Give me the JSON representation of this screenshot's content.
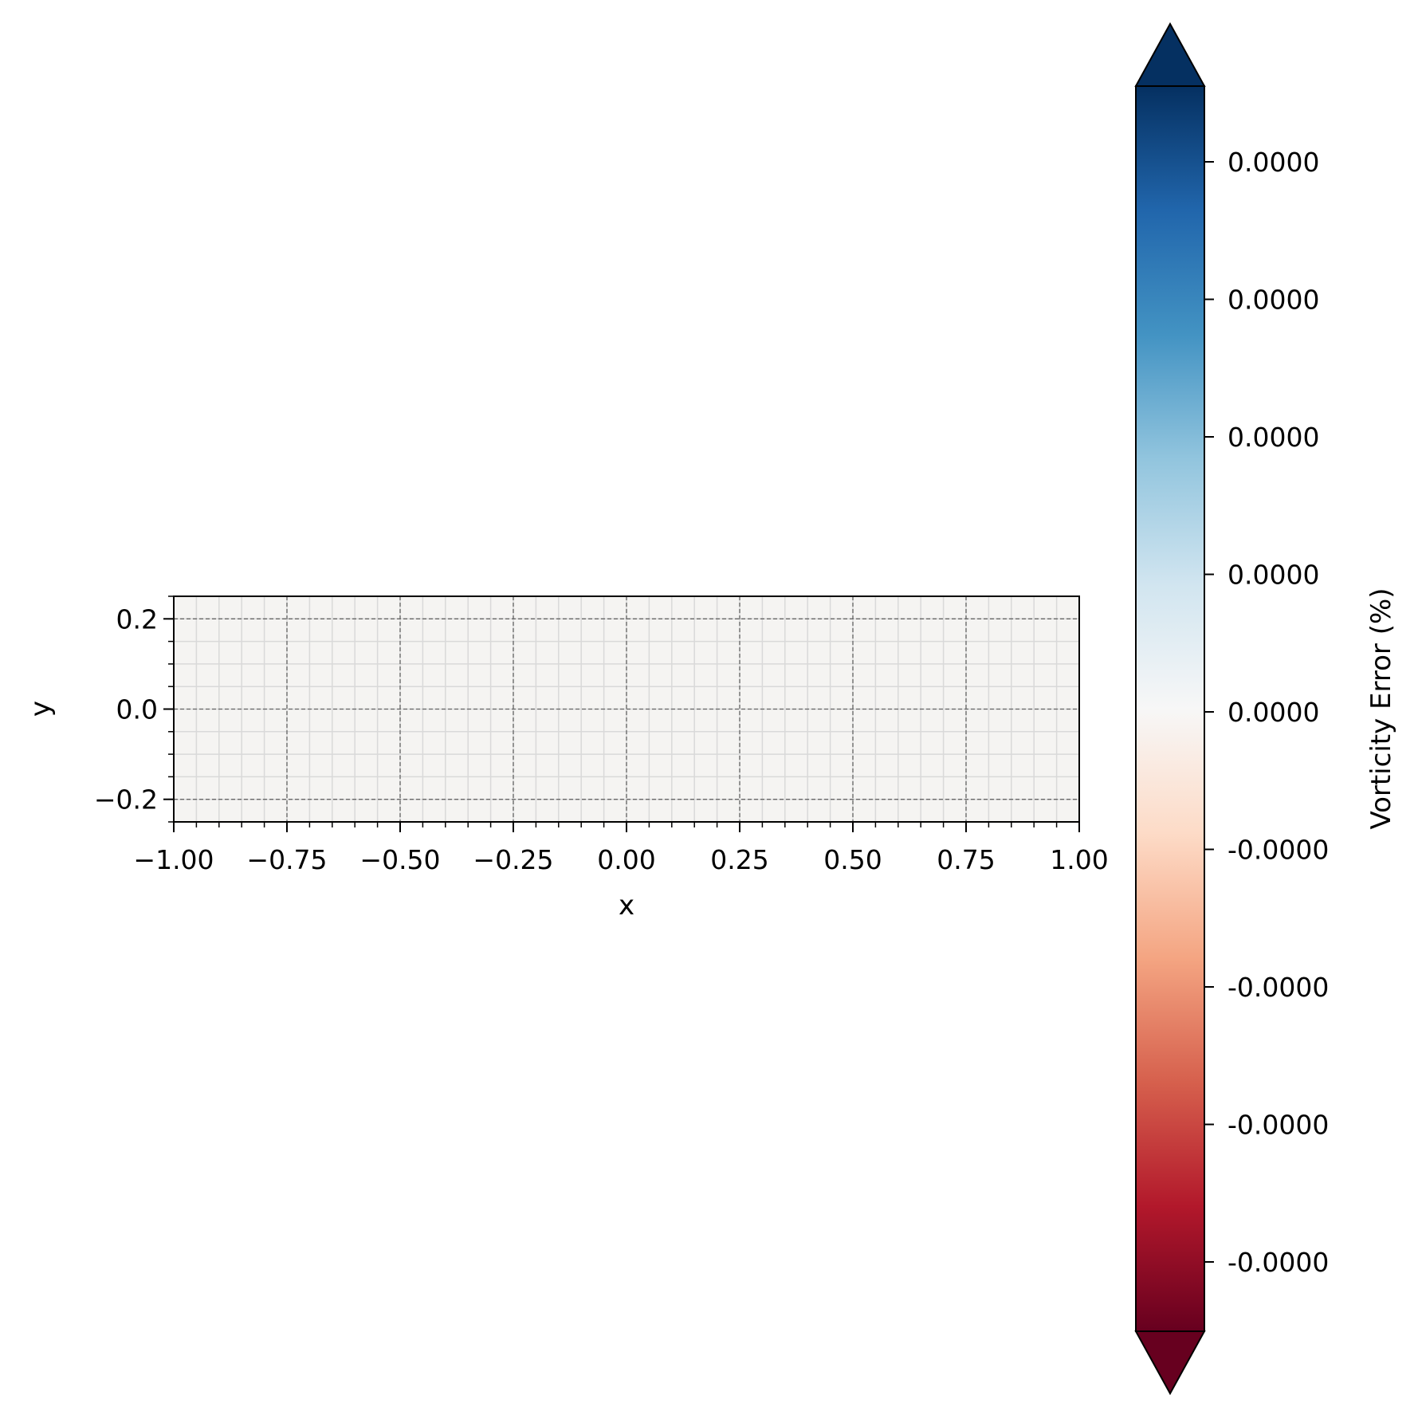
{
  "chart_data": {
    "type": "heatmap",
    "xlabel": "x",
    "ylabel": "y",
    "xlim": [
      -1.0,
      1.0
    ],
    "ylim": [
      -0.25,
      0.25
    ],
    "x_ticks": [
      {
        "value": -1.0,
        "label": "−1.00"
      },
      {
        "value": -0.75,
        "label": "−0.75"
      },
      {
        "value": -0.5,
        "label": "−0.50"
      },
      {
        "value": -0.25,
        "label": "−0.25"
      },
      {
        "value": 0.0,
        "label": "0.00"
      },
      {
        "value": 0.25,
        "label": "0.25"
      },
      {
        "value": 0.5,
        "label": "0.50"
      },
      {
        "value": 0.75,
        "label": "0.75"
      },
      {
        "value": 1.0,
        "label": "1.00"
      }
    ],
    "y_ticks": [
      {
        "value": 0.2,
        "label": "0.2"
      },
      {
        "value": 0.0,
        "label": "0.0"
      },
      {
        "value": -0.2,
        "label": "−0.2"
      }
    ],
    "x_minor_step": 0.05,
    "y_minor_step": 0.05,
    "field_value": 0.0,
    "field_color": "#f5f4f2",
    "grid": true,
    "colorbar": {
      "label": "Vorticity Error (%)",
      "cmap": "RdBu",
      "extend": "both",
      "tick_labels": [
        "0.0000",
        "0.0000",
        "0.0000",
        "0.0000",
        "0.0000",
        "-0.0000",
        "-0.0000",
        "-0.0000",
        "-0.0000"
      ],
      "stops": [
        "#67001f",
        "#b2182b",
        "#d6604d",
        "#f4a582",
        "#fddbc7",
        "#f7f7f7",
        "#d1e5f0",
        "#92c5de",
        "#4393c3",
        "#2166ac",
        "#053061"
      ]
    }
  }
}
